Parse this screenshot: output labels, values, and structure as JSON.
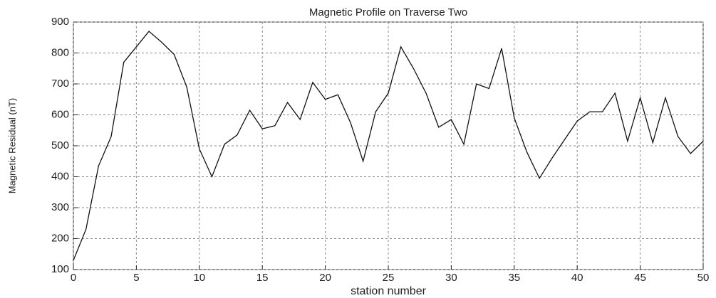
{
  "chart_data": {
    "type": "line",
    "title": "Magnetic Profile on Traverse Two",
    "x_label": "station number",
    "y_label": "Magnetic Residual (nT)",
    "x": [
      0,
      1,
      2,
      3,
      4,
      5,
      6,
      7,
      8,
      9,
      10,
      11,
      12,
      13,
      14,
      15,
      16,
      17,
      18,
      19,
      20,
      21,
      22,
      23,
      24,
      25,
      26,
      27,
      28,
      29,
      30,
      31,
      32,
      33,
      34,
      35,
      36,
      37,
      38,
      39,
      40,
      41,
      42,
      43,
      44,
      45,
      46,
      47,
      48,
      49,
      50
    ],
    "series": [
      {
        "color": "#111111",
        "values": [
          130,
          230,
          435,
          530,
          770,
          820,
          870,
          835,
          795,
          690,
          490,
          400,
          505,
          535,
          615,
          555,
          565,
          640,
          585,
          705,
          650,
          665,
          575,
          450,
          610,
          670,
          820,
          750,
          670,
          560,
          585,
          505,
          700,
          685,
          815,
          590,
          480,
          395,
          460,
          520,
          580,
          610,
          610,
          670,
          515,
          655,
          510,
          655,
          530,
          475,
          515
        ]
      }
    ],
    "xlim": [
      0,
      50
    ],
    "xticks": [
      0,
      5,
      10,
      15,
      20,
      25,
      30,
      35,
      40,
      45,
      50
    ],
    "ylim": [
      100,
      900
    ],
    "yticks": [
      100,
      200,
      300,
      400,
      500,
      600,
      700,
      800,
      900
    ],
    "grid": true
  }
}
